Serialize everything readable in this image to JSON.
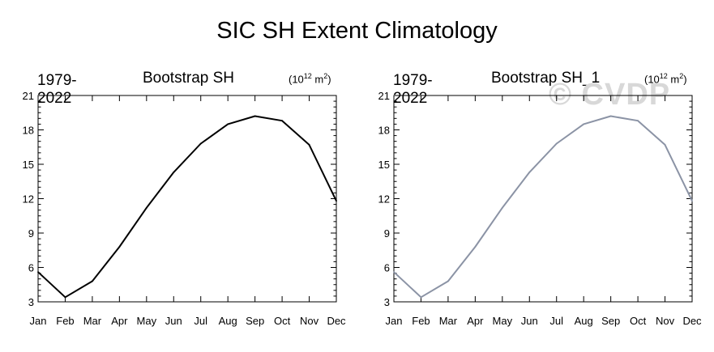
{
  "figure": {
    "title": "SIC SH Extent Climatology"
  },
  "watermark": "© CVDP",
  "chart_data": [
    {
      "type": "line",
      "title": "Bootstrap SH",
      "period_label": "1979-2022",
      "units": {
        "base": "(10",
        "exp": "12",
        "mid": " m",
        "exp2": "2",
        "end": ")"
      },
      "categories": [
        "Jan",
        "Feb",
        "Mar",
        "Apr",
        "May",
        "Jun",
        "Jul",
        "Aug",
        "Sep",
        "Oct",
        "Nov",
        "Dec"
      ],
      "series": [
        {
          "name": "Bootstrap SH",
          "color": "#000000",
          "values": [
            5.6,
            3.4,
            4.8,
            7.8,
            11.2,
            14.3,
            16.8,
            18.5,
            19.2,
            18.8,
            16.7,
            11.8
          ]
        }
      ],
      "ylim": [
        3,
        21
      ],
      "yticks": [
        3,
        6,
        9,
        12,
        15,
        18,
        21
      ],
      "ytick_labels": [
        "3",
        "6",
        "9",
        "12",
        "15",
        "18",
        "21"
      ],
      "grid": false
    },
    {
      "type": "line",
      "title": "Bootstrap SH_1",
      "period_label": "1979-2022",
      "units": {
        "base": "(10",
        "exp": "12",
        "mid": " m",
        "exp2": "2",
        "end": ")"
      },
      "categories": [
        "Jan",
        "Feb",
        "Mar",
        "Apr",
        "May",
        "Jun",
        "Jul",
        "Aug",
        "Sep",
        "Oct",
        "Nov",
        "Dec"
      ],
      "series": [
        {
          "name": "Bootstrap SH_1",
          "color": "#8b93a5",
          "values": [
            5.6,
            3.4,
            4.8,
            7.8,
            11.2,
            14.3,
            16.8,
            18.5,
            19.2,
            18.8,
            16.7,
            11.8
          ]
        }
      ],
      "ylim": [
        3,
        21
      ],
      "yticks": [
        3,
        6,
        9,
        12,
        15,
        18,
        21
      ],
      "ytick_labels": [
        "3",
        "6",
        "9",
        "12",
        "15",
        "18",
        "21"
      ],
      "grid": false
    }
  ]
}
